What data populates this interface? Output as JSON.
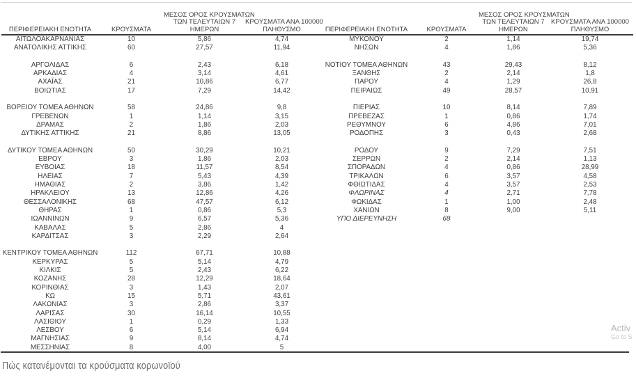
{
  "colors": {
    "text": "#3e3e3e",
    "rule": "#3a3a3a",
    "top_hairline": "#d8d8d8",
    "caption_text": "#6d6d6d",
    "watermark_text": "#b4b9bc"
  },
  "headers": {
    "region": "ΠΕΡΙΦΕΡΕΙΑΚΗ ΕΝΟΤΗΤΑ",
    "cases": "ΚΡΟΥΣΜΑΤΑ",
    "avg7_l1": "ΜΕΣΟΣ ΟΡΟΣ ΚΡΟΥΣΜΑΤΩΝ",
    "avg7_l2": "ΤΩΝ ΤΕΛΕΥΤΑΙΩΝ 7",
    "avg7_l3": "ΗΜΕΡΩΝ",
    "per100k_l1": "ΚΡΟΥΣΜΑΤΑ ΑΝΑ 100000",
    "per100k_l2": "ΠΛΗΘΥΣΜΟ"
  },
  "tables": {
    "left": {
      "rows": [
        {
          "region": "ΑΙΤΩΛΟΑΚΑΡΝΑΝΙΑΣ",
          "cases": "10",
          "avg7": "5,86",
          "per100k": "4,74"
        },
        {
          "region": "ΑΝΑΤΟΛΙΚΗΣ ΑΤΤΙΚΗΣ",
          "cases": "60",
          "avg7": "27,57",
          "per100k": "11,94"
        },
        null,
        {
          "region": "ΑΡΓΟΛΙΔΑΣ",
          "cases": "6",
          "avg7": "2,43",
          "per100k": "6,18"
        },
        {
          "region": "ΑΡΚΑΔΙΑΣ",
          "cases": "4",
          "avg7": "3,14",
          "per100k": "4,61"
        },
        {
          "region": "ΑΧΑΪΑΣ",
          "cases": "21",
          "avg7": "10,86",
          "per100k": "6,77"
        },
        {
          "region": "ΒΟΙΩΤΙΑΣ",
          "cases": "17",
          "avg7": "7,29",
          "per100k": "14,42"
        },
        null,
        {
          "region": "ΒΟΡΕΙΟΥ ΤΟΜΕΑ ΑΘΗΝΩΝ",
          "cases": "58",
          "avg7": "24,86",
          "per100k": "9,8"
        },
        {
          "region": "ΓΡΕΒΕΝΩΝ",
          "cases": "1",
          "avg7": "1,14",
          "per100k": "3,15"
        },
        {
          "region": "ΔΡΑΜΑΣ",
          "cases": "2",
          "avg7": "1,86",
          "per100k": "2,03"
        },
        {
          "region": "ΔΥΤΙΚΗΣ ΑΤΤΙΚΗΣ",
          "cases": "21",
          "avg7": "8,86",
          "per100k": "13,05"
        },
        null,
        {
          "region": "ΔΥΤΙΚΟΥ ΤΟΜΕΑ ΑΘΗΝΩΝ",
          "cases": "50",
          "avg7": "30,29",
          "per100k": "10,21"
        },
        {
          "region": "ΕΒΡΟΥ",
          "cases": "3",
          "avg7": "1,86",
          "per100k": "2,03"
        },
        {
          "region": "ΕΥΒΟΙΑΣ",
          "cases": "18",
          "avg7": "11,57",
          "per100k": "8,54"
        },
        {
          "region": "ΗΛΕΙΑΣ",
          "cases": "7",
          "avg7": "5,43",
          "per100k": "4,39"
        },
        {
          "region": "ΗΜΑΘΙΑΣ",
          "cases": "2",
          "avg7": "3,86",
          "per100k": "1,42"
        },
        {
          "region": "ΗΡΑΚΛΕΙΟΥ",
          "cases": "13",
          "avg7": "12,86",
          "per100k": "4,26"
        },
        {
          "region": "ΘΕΣΣΑΛΟΝΙΚΗΣ",
          "cases": "68",
          "avg7": "47,57",
          "per100k": "6,12"
        },
        {
          "region": "ΘΗΡΑΣ",
          "cases": "1",
          "avg7": "0,86",
          "per100k": "5,3"
        },
        {
          "region": "ΙΩΑΝΝΙΝΩΝ",
          "cases": "9",
          "avg7": "6,57",
          "per100k": "5,36"
        },
        {
          "region": "ΚΑΒΑΛΑΣ",
          "cases": "5",
          "avg7": "2,86",
          "per100k": "4"
        },
        {
          "region": "ΚΑΡΔΙΤΣΑΣ",
          "cases": "3",
          "avg7": "2,29",
          "per100k": "2,64"
        },
        null,
        {
          "region": "ΚΕΝΤΡΙΚΟΥ ΤΟΜΕΑ ΑΘΗΝΩΝ",
          "cases": "112",
          "avg7": "67,71",
          "per100k": "10,88"
        },
        {
          "region": "ΚΕΡΚΥΡΑΣ",
          "cases": "5",
          "avg7": "5,14",
          "per100k": "4,79"
        },
        {
          "region": "ΚΙΛΚΙΣ",
          "cases": "5",
          "avg7": "2,43",
          "per100k": "6,22"
        },
        {
          "region": "ΚΟΖΑΝΗΣ",
          "cases": "28",
          "avg7": "12,29",
          "per100k": "18,64"
        },
        {
          "region": "ΚΟΡΙΝΘΙΑΣ",
          "cases": "3",
          "avg7": "1,43",
          "per100k": "2,07"
        },
        {
          "region": "ΚΩ",
          "cases": "15",
          "avg7": "5,71",
          "per100k": "43,61"
        },
        {
          "region": "ΛΑΚΩΝΙΑΣ",
          "cases": "3",
          "avg7": "2,86",
          "per100k": "3,37"
        },
        {
          "region": "ΛΑΡΙΣΑΣ",
          "cases": "30",
          "avg7": "16,14",
          "per100k": "10,55"
        },
        {
          "region": "ΛΑΣΙΘΙΟΥ",
          "cases": "1",
          "avg7": "0,29",
          "per100k": "1,33"
        },
        {
          "region": "ΛΕΣΒΟΥ",
          "cases": "6",
          "avg7": "5,14",
          "per100k": "6,94"
        },
        {
          "region": "ΜΑΓΝΗΣΙΑΣ",
          "cases": "9",
          "avg7": "8,14",
          "per100k": "4,74"
        },
        {
          "region": "ΜΕΣΣΗΝΙΑΣ",
          "cases": "8",
          "avg7": "4,00",
          "per100k": "5"
        }
      ]
    },
    "right": {
      "rows": [
        {
          "region": "ΜΥΚΟΝΟΥ",
          "cases": "2",
          "avg7": "1,14",
          "per100k": "19,74"
        },
        {
          "region": "ΝΗΣΩΝ",
          "cases": "4",
          "avg7": "1,86",
          "per100k": "5,36"
        },
        null,
        {
          "region": "ΝΟΤΙΟΥ ΤΟΜΕΑ ΑΘΗΝΩΝ",
          "cases": "43",
          "avg7": "29,43",
          "per100k": "8,12"
        },
        {
          "region": "ΞΑΝΘΗΣ",
          "cases": "2",
          "avg7": "2,14",
          "per100k": "1,8"
        },
        {
          "region": "ΠΑΡΟΥ",
          "cases": "4",
          "avg7": "1,29",
          "per100k": "26,8"
        },
        {
          "region": "ΠΕΙΡΑΙΩΣ",
          "cases": "49",
          "avg7": "28,57",
          "per100k": "10,91"
        },
        null,
        {
          "region": "ΠΙΕΡΙΑΣ",
          "cases": "10",
          "avg7": "8,14",
          "per100k": "7,89"
        },
        {
          "region": "ΠΡΕΒΕΖΑΣ",
          "cases": "1",
          "avg7": "0,86",
          "per100k": "1,74"
        },
        {
          "region": "ΡΕΘΥΜΝΟΥ",
          "cases": "6",
          "avg7": "4,86",
          "per100k": "7,01"
        },
        {
          "region": "ΡΟΔΟΠΗΣ",
          "cases": "3",
          "avg7": "0,43",
          "per100k": "2,68"
        },
        null,
        {
          "region": "ΡΟΔΟΥ",
          "cases": "9",
          "avg7": "7,29",
          "per100k": "7,51"
        },
        {
          "region": "ΣΕΡΡΩΝ",
          "cases": "2",
          "avg7": "2,14",
          "per100k": "1,13"
        },
        {
          "region": "ΣΠΟΡΑΔΩΝ",
          "cases": "4",
          "avg7": "0,86",
          "per100k": "28,99"
        },
        {
          "region": "ΤΡΙΚΑΛΩΝ",
          "cases": "6",
          "avg7": "3,57",
          "per100k": "4,58"
        },
        {
          "region": "ΦΘΙΩΤΙΔΑΣ",
          "cases": "4",
          "avg7": "3,57",
          "per100k": "2,53"
        },
        {
          "region": "ΦΛΩΡΙΝΑΣ",
          "cases": "4",
          "avg7": "2,71",
          "per100k": "7,78",
          "italic": true
        },
        {
          "region": "ΦΩΚΙΔΑΣ",
          "cases": "1",
          "avg7": "1,00",
          "per100k": "2,48"
        },
        {
          "region": "ΧΑΝΙΩΝ",
          "cases": "8",
          "avg7": "9,00",
          "per100k": "5,11"
        },
        {
          "region": "ΥΠΟ ΔΙΕΡΕΥΝΗΣΗ",
          "cases": "68",
          "avg7": "",
          "per100k": "",
          "italic": true
        }
      ]
    }
  },
  "caption": "Πώς κατανέμονται τα κρούσματα κορωνοϊού",
  "watermark": {
    "line1": "Activ",
    "line2": "Go to S"
  }
}
